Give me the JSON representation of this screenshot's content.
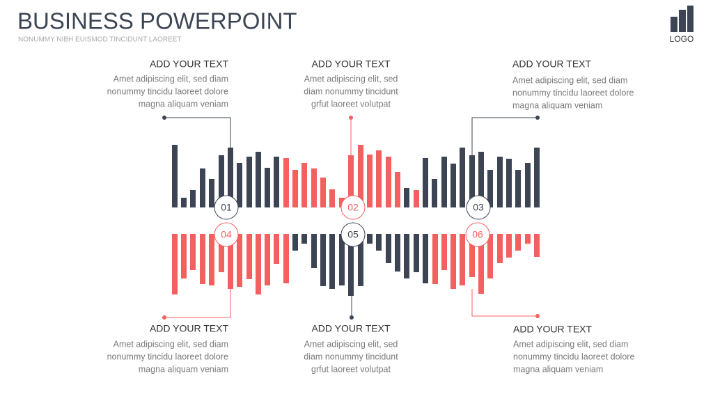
{
  "header": {
    "title": "BUSINESS POWERPOINT",
    "subtitle": "NONUMMY NIBH EUISMOD TINCIDUNT LAOREET",
    "logo": "LOGO"
  },
  "items": [
    {
      "number": "01",
      "heading": "ADD YOUR TEXT",
      "lines": [
        "Amet adipiscing elit, sed diam",
        "nonummy tincidu laoreet dolore",
        "magna aliquam veniam"
      ]
    },
    {
      "number": "02",
      "heading": "ADD YOUR TEXT",
      "lines": [
        "Amet adipiscing elit, sed",
        "diam nonummy tincidunt",
        "grfut laoreet volutpat"
      ]
    },
    {
      "number": "03",
      "heading": "ADD YOUR TEXT",
      "lines": [
        "Amet adipiscing elit, sed diam",
        "nonummy tincidu laoreet dolore",
        "magna aliquam veniam"
      ]
    },
    {
      "number": "04",
      "heading": "ADD YOUR TEXT",
      "lines": [
        "Amet adipiscing elit, sed diam",
        "nonummy tincidu laoreet dolore",
        "magna aliquam veniam"
      ]
    },
    {
      "number": "05",
      "heading": "ADD YOUR TEXT",
      "lines": [
        "Amet adipiscing elit, sed",
        "diam nonummy tincidunt",
        "grfut laoreet volutpat"
      ]
    },
    {
      "number": "06",
      "heading": "ADD YOUR TEXT",
      "lines": [
        "Amet adipiscing elit, sed diam",
        "nonummy tincidu laoreet dolore",
        "magna aliquam veniam"
      ]
    }
  ]
}
